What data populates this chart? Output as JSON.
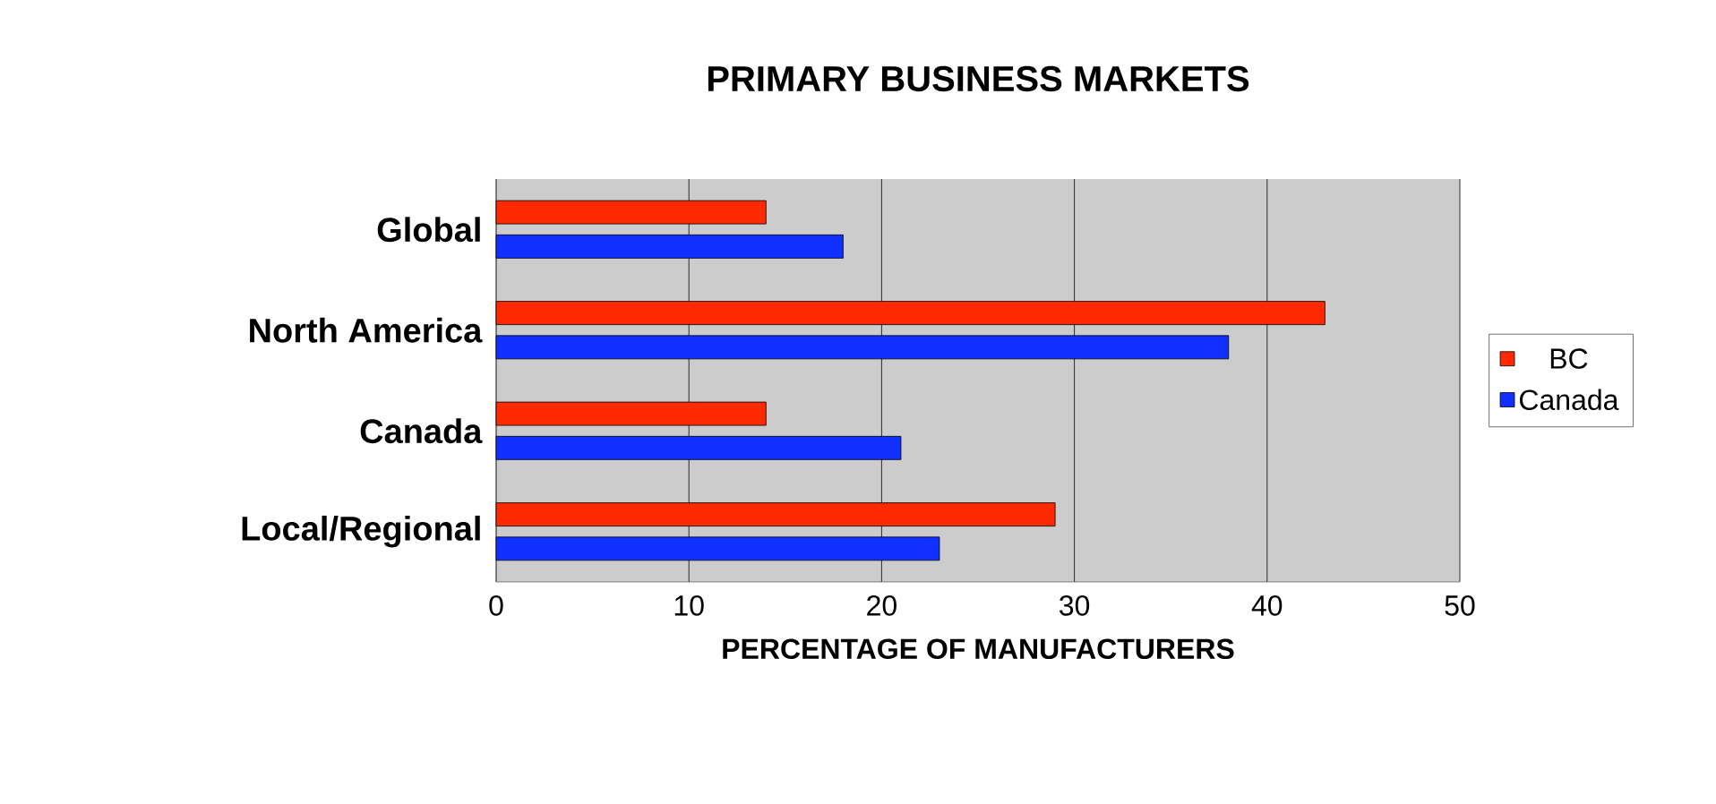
{
  "chart_data": {
    "type": "bar",
    "orientation": "horizontal",
    "title": "PRIMARY BUSINESS MARKETS",
    "xlabel": "PERCENTAGE OF MANUFACTURERS",
    "categories": [
      "Global",
      "North America",
      "Canada",
      "Local/Regional"
    ],
    "series": [
      {
        "name": "BC",
        "color": "#ff2a00",
        "values": [
          14,
          43,
          14,
          29
        ]
      },
      {
        "name": "Canada",
        "color": "#1030ff",
        "values": [
          18,
          38,
          21,
          23
        ]
      }
    ],
    "xlim": [
      0,
      50
    ],
    "xticks": [
      0,
      10,
      20,
      30,
      40,
      50
    ],
    "grid": "x",
    "legend": "right"
  }
}
